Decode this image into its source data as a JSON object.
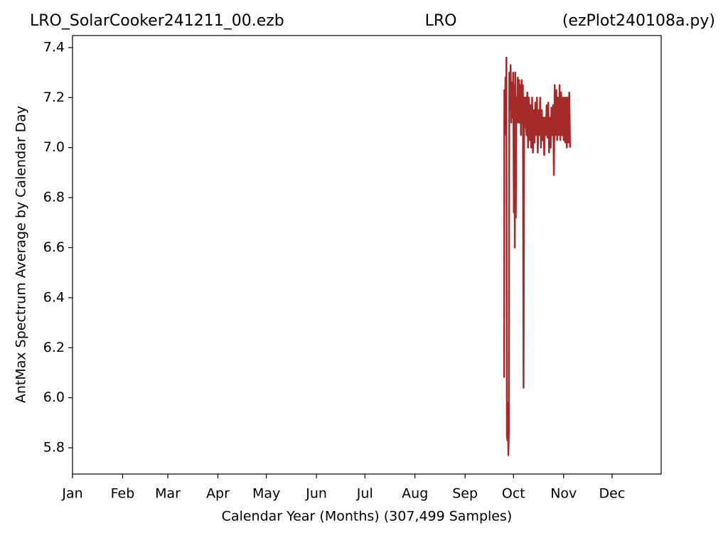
{
  "chart_data": {
    "type": "line",
    "title": "LRO_SolarCooker241211_00.ezb",
    "subtitle": "LRO",
    "annotation": "(ezPlot240108a.py)",
    "xlabel": "Calendar Year (Months) (307,499 Samples)",
    "ylabel": "AntMax Spectrum Average by Calendar Day",
    "xlim": [
      0,
      364.4
    ],
    "ylim": [
      5.695,
      7.448
    ],
    "xticks": [
      {
        "value": 0,
        "label": "Jan"
      },
      {
        "value": 31,
        "label": "Feb"
      },
      {
        "value": 59,
        "label": "Mar"
      },
      {
        "value": 90,
        "label": "Apr"
      },
      {
        "value": 120,
        "label": "May"
      },
      {
        "value": 151,
        "label": "Jun"
      },
      {
        "value": 181,
        "label": "Jul"
      },
      {
        "value": 212,
        "label": "Aug"
      },
      {
        "value": 243,
        "label": "Sep"
      },
      {
        "value": 273,
        "label": "Oct"
      },
      {
        "value": 304,
        "label": "Nov"
      },
      {
        "value": 334,
        "label": "Dec"
      }
    ],
    "yticks": [
      5.8,
      {
        "value": 6,
        "label": "6.0"
      },
      6.2,
      6.4,
      6.6,
      6.8,
      {
        "value": 7,
        "label": "7.0"
      },
      7.2,
      7.4
    ],
    "grid": false,
    "color": "#a52a2a",
    "x": [
      267.2,
      267.3,
      267.6,
      268.0,
      268.3,
      268.6,
      268.9,
      269.2,
      269.5,
      269.8,
      270.1,
      270.4,
      270.8,
      271.2,
      271.6,
      272.0,
      272.4,
      272.8,
      273.2,
      273.5,
      273.8,
      274.1,
      274.4,
      274.8,
      275.2,
      275.6,
      276.0,
      276.4,
      276.8,
      277.2,
      277.6,
      278.0,
      278.4,
      278.8,
      279.2,
      279.6,
      280.0,
      280.5,
      281,
      281.5,
      282,
      282.5,
      283,
      283.5,
      284,
      284.5,
      285,
      285.5,
      286,
      286.5,
      287,
      287.5,
      288,
      288.5,
      289,
      289.5,
      290,
      290.5,
      291,
      291.5,
      292,
      292.5,
      293,
      293.5,
      294,
      294.5,
      295,
      295.5,
      296,
      296.5,
      297,
      297.5,
      298,
      298.5,
      299,
      299.5,
      300,
      300.5,
      301,
      301.5,
      302,
      302.5,
      303,
      303.5,
      304,
      304.5,
      305,
      305.5,
      306,
      306.5,
      307,
      307.5,
      308
    ],
    "values": [
      6.08,
      7.23,
      7.05,
      7.28,
      7.1,
      7.36,
      5.85,
      5.83,
      5.98,
      5.77,
      5.86,
      7.3,
      7.15,
      7.33,
      7.1,
      7.26,
      7.12,
      7.3,
      6.74,
      7.25,
      6.6,
      7.3,
      6.72,
      7.2,
      7.1,
      7.28,
      7.1,
      7.27,
      7.1,
      7.25,
      7.05,
      7.27,
      7.1,
      7.25,
      6.04,
      7.2,
      7.08,
      7.2,
      7.05,
      7.22,
      7.0,
      7.2,
      7.03,
      7.17,
      7.0,
      7.2,
      6.98,
      7.15,
      7.02,
      7.18,
      7.05,
      7.2,
      6.98,
      7.15,
      7.05,
      7.2,
      7.0,
      7.15,
      7.03,
      7.12,
      6.97,
      7.12,
      7.05,
      7.17,
      7.04,
      7.18,
      6.98,
      7.12,
      7.0,
      7.16,
      7.05,
      7.17,
      6.89,
      7.25,
      7.05,
      7.23,
      7.03,
      7.2,
      7.05,
      7.25,
      7.03,
      7.22,
      7.05,
      7.2,
      7.03,
      7.2,
      7.02,
      7.2,
      7.0,
      7.2,
      7.02,
      7.22,
      7.0
    ]
  }
}
